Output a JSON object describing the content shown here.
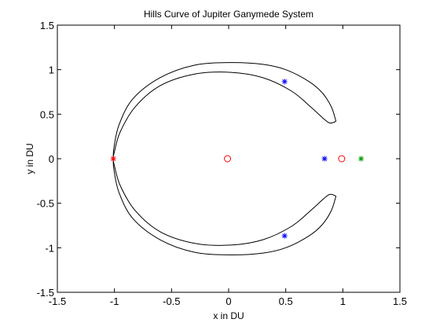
{
  "chart_data": {
    "type": "line",
    "title": "Hills Curve of Jupiter Ganymede System",
    "xlabel": "x in DU",
    "ylabel": "y in DU",
    "xlim": [
      -1.5,
      1.5
    ],
    "ylim": [
      -1.5,
      1.5
    ],
    "xticks": [
      -1.5,
      -1,
      -0.5,
      0,
      0.5,
      1,
      1.5
    ],
    "yticks": [
      -1.5,
      -1,
      -0.5,
      0,
      0.5,
      1,
      1.5
    ],
    "xtick_labels": [
      "-1.5",
      "-1",
      "-0.5",
      "0",
      "0.5",
      "1",
      "1.5"
    ],
    "ytick_labels": [
      "-1.5",
      "-1",
      "-0.5",
      "0",
      "0.5",
      "1",
      "1.5"
    ],
    "grid": false,
    "colors": {
      "curve": "#000000",
      "red": "#ff0000",
      "blue": "#0000ff",
      "green": "#00a000"
    },
    "curve_outer": [
      [
        0.94,
        0.42
      ],
      [
        0.9,
        0.58
      ],
      [
        0.82,
        0.74
      ],
      [
        0.7,
        0.87
      ],
      [
        0.5,
        1.0
      ],
      [
        0.3,
        1.06
      ],
      [
        0.02,
        1.08
      ],
      [
        -0.3,
        1.05
      ],
      [
        -0.6,
        0.91
      ],
      [
        -0.84,
        0.67
      ],
      [
        -0.96,
        0.38
      ],
      [
        -1.005,
        0.12
      ],
      [
        -1.01,
        0.0
      ],
      [
        -1.005,
        -0.12
      ],
      [
        -0.96,
        -0.38
      ],
      [
        -0.84,
        -0.67
      ],
      [
        -0.6,
        -0.91
      ],
      [
        -0.3,
        -1.05
      ],
      [
        0.02,
        -1.08
      ],
      [
        0.3,
        -1.06
      ],
      [
        0.5,
        -1.0
      ],
      [
        0.7,
        -0.87
      ],
      [
        0.82,
        -0.74
      ],
      [
        0.9,
        -0.58
      ],
      [
        0.94,
        -0.42
      ]
    ],
    "curve_inner": [
      [
        0.94,
        0.42
      ],
      [
        0.89,
        0.4
      ],
      [
        0.84,
        0.44
      ],
      [
        0.72,
        0.58
      ],
      [
        0.55,
        0.76
      ],
      [
        0.3,
        0.91
      ],
      [
        0.02,
        0.97
      ],
      [
        -0.3,
        0.95
      ],
      [
        -0.6,
        0.82
      ],
      [
        -0.82,
        0.58
      ],
      [
        -0.95,
        0.3
      ],
      [
        -1.0,
        0.08
      ],
      [
        -1.01,
        0.0
      ],
      [
        -1.0,
        -0.08
      ],
      [
        -0.95,
        -0.3
      ],
      [
        -0.82,
        -0.58
      ],
      [
        -0.6,
        -0.82
      ],
      [
        -0.3,
        -0.95
      ],
      [
        0.02,
        -0.97
      ],
      [
        0.3,
        -0.91
      ],
      [
        0.55,
        -0.76
      ],
      [
        0.72,
        -0.58
      ],
      [
        0.84,
        -0.44
      ],
      [
        0.89,
        -0.4
      ],
      [
        0.94,
        -0.42
      ]
    ],
    "markers": [
      {
        "x": -0.01,
        "y": 0.0,
        "marker": "circle",
        "color": "red"
      },
      {
        "x": 0.99,
        "y": 0.0,
        "marker": "circle",
        "color": "red"
      },
      {
        "x": -1.01,
        "y": 0.0,
        "marker": "star",
        "color": "red"
      },
      {
        "x": 0.84,
        "y": 0.0,
        "marker": "star",
        "color": "blue"
      },
      {
        "x": 1.16,
        "y": 0.0,
        "marker": "star",
        "color": "green"
      },
      {
        "x": 0.49,
        "y": 0.866,
        "marker": "star",
        "color": "blue"
      },
      {
        "x": 0.49,
        "y": -0.866,
        "marker": "star",
        "color": "blue"
      }
    ]
  }
}
